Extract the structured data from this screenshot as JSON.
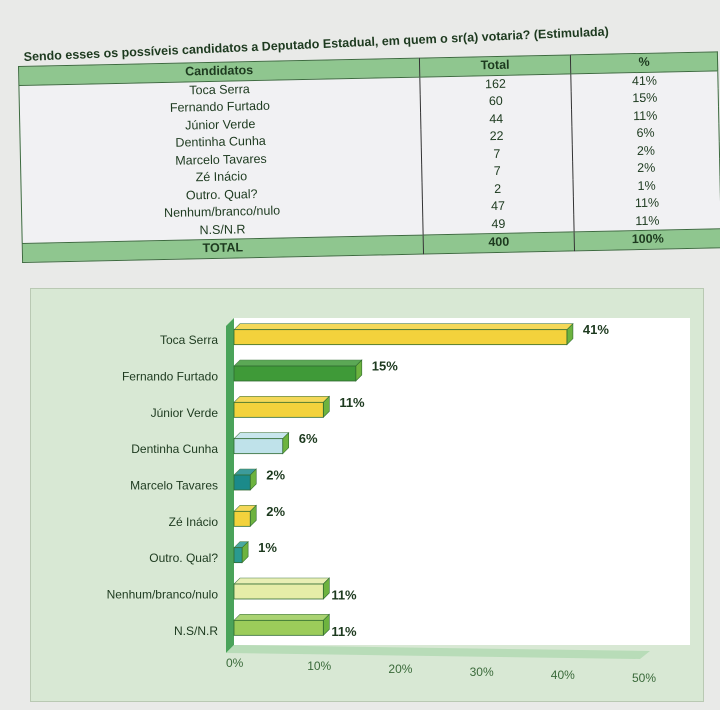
{
  "table": {
    "title": "Sendo esses os possíveis candidatos a Deputado Estadual, em quem o sr(a) votaria? (Estimulada)",
    "headers": [
      "Candidatos",
      "Total",
      "%"
    ],
    "rows": [
      [
        "Toca Serra",
        "162",
        "41%"
      ],
      [
        "Fernando Furtado",
        "60",
        "15%"
      ],
      [
        "Júnior Verde",
        "44",
        "11%"
      ],
      [
        "Dentinha Cunha",
        "22",
        "6%"
      ],
      [
        "Marcelo Tavares",
        "7",
        "2%"
      ],
      [
        "Zé Inácio",
        "7",
        "2%"
      ],
      [
        "Outro. Qual?",
        "2",
        "1%"
      ],
      [
        "Nenhum/branco/nulo",
        "47",
        "11%"
      ],
      [
        "N.S/N.R",
        "49",
        "11%"
      ]
    ],
    "total": [
      "TOTAL",
      "400",
      "100%"
    ]
  },
  "chart_data": {
    "type": "bar",
    "orientation": "horizontal",
    "categories": [
      "Toca Serra",
      "Fernando Furtado",
      "Júnior Verde",
      "Dentinha Cunha",
      "Marcelo Tavares",
      "Zé Inácio",
      "Outro. Qual?",
      "Nenhum/branco/nulo",
      "N.S/N.R"
    ],
    "values": [
      41,
      15,
      11,
      6,
      2,
      2,
      1,
      11,
      11
    ],
    "data_labels": [
      "41%",
      "15%",
      "11%",
      "6%",
      "2%",
      "2%",
      "1%",
      "11%",
      "11%"
    ],
    "colors": [
      "#f3d23c",
      "#3f9a38",
      "#f3d23c",
      "#bfe2ea",
      "#1b8a8a",
      "#f3d23c",
      "#2a9a90",
      "#e6eda8",
      "#9ccc5a"
    ],
    "xlim": [
      0,
      50
    ],
    "xticks": [
      "0%",
      "10%",
      "20%",
      "30%",
      "40%",
      "50%"
    ],
    "grid": false,
    "style": "3d"
  }
}
